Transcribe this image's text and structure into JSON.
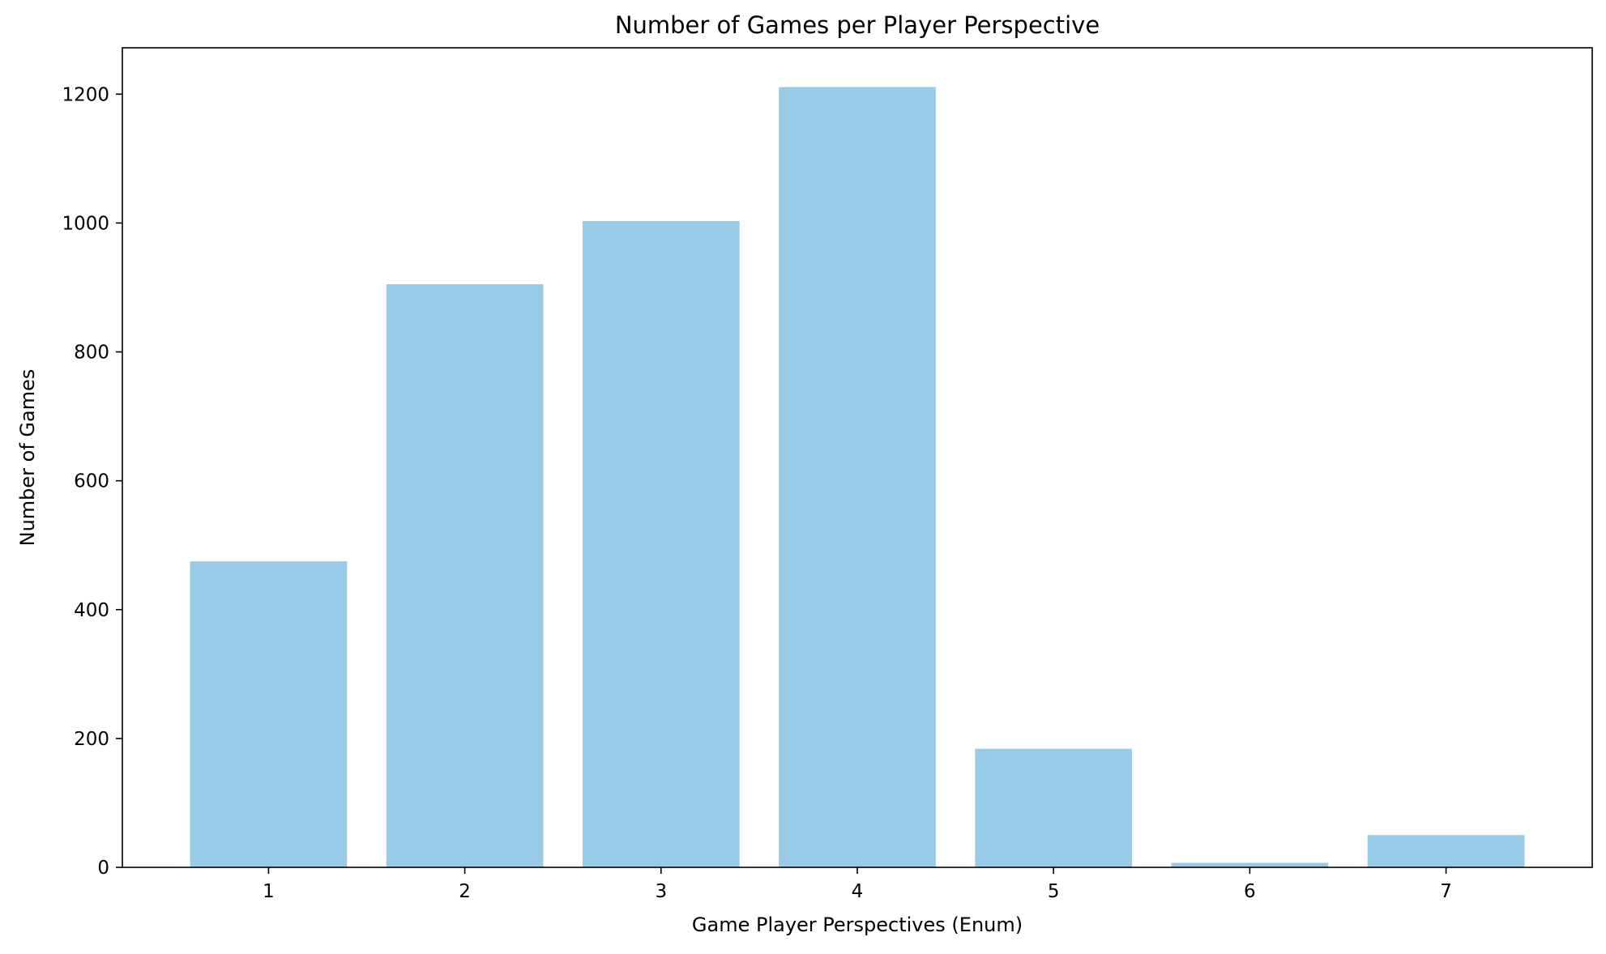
{
  "chart_data": {
    "type": "bar",
    "title": "Number of Games per Player Perspective",
    "xlabel": "Game Player Perspectives (Enum)",
    "ylabel": "Number of Games",
    "categories": [
      "1",
      "2",
      "3",
      "4",
      "5",
      "6",
      "7"
    ],
    "values": [
      475,
      905,
      1003,
      1211,
      184,
      7,
      50
    ],
    "ylim": [
      0,
      1272
    ],
    "yticks": [
      "0",
      "200",
      "400",
      "600",
      "800",
      "1000",
      "1200"
    ],
    "grid": false,
    "bar_color": "#98cbe7"
  }
}
